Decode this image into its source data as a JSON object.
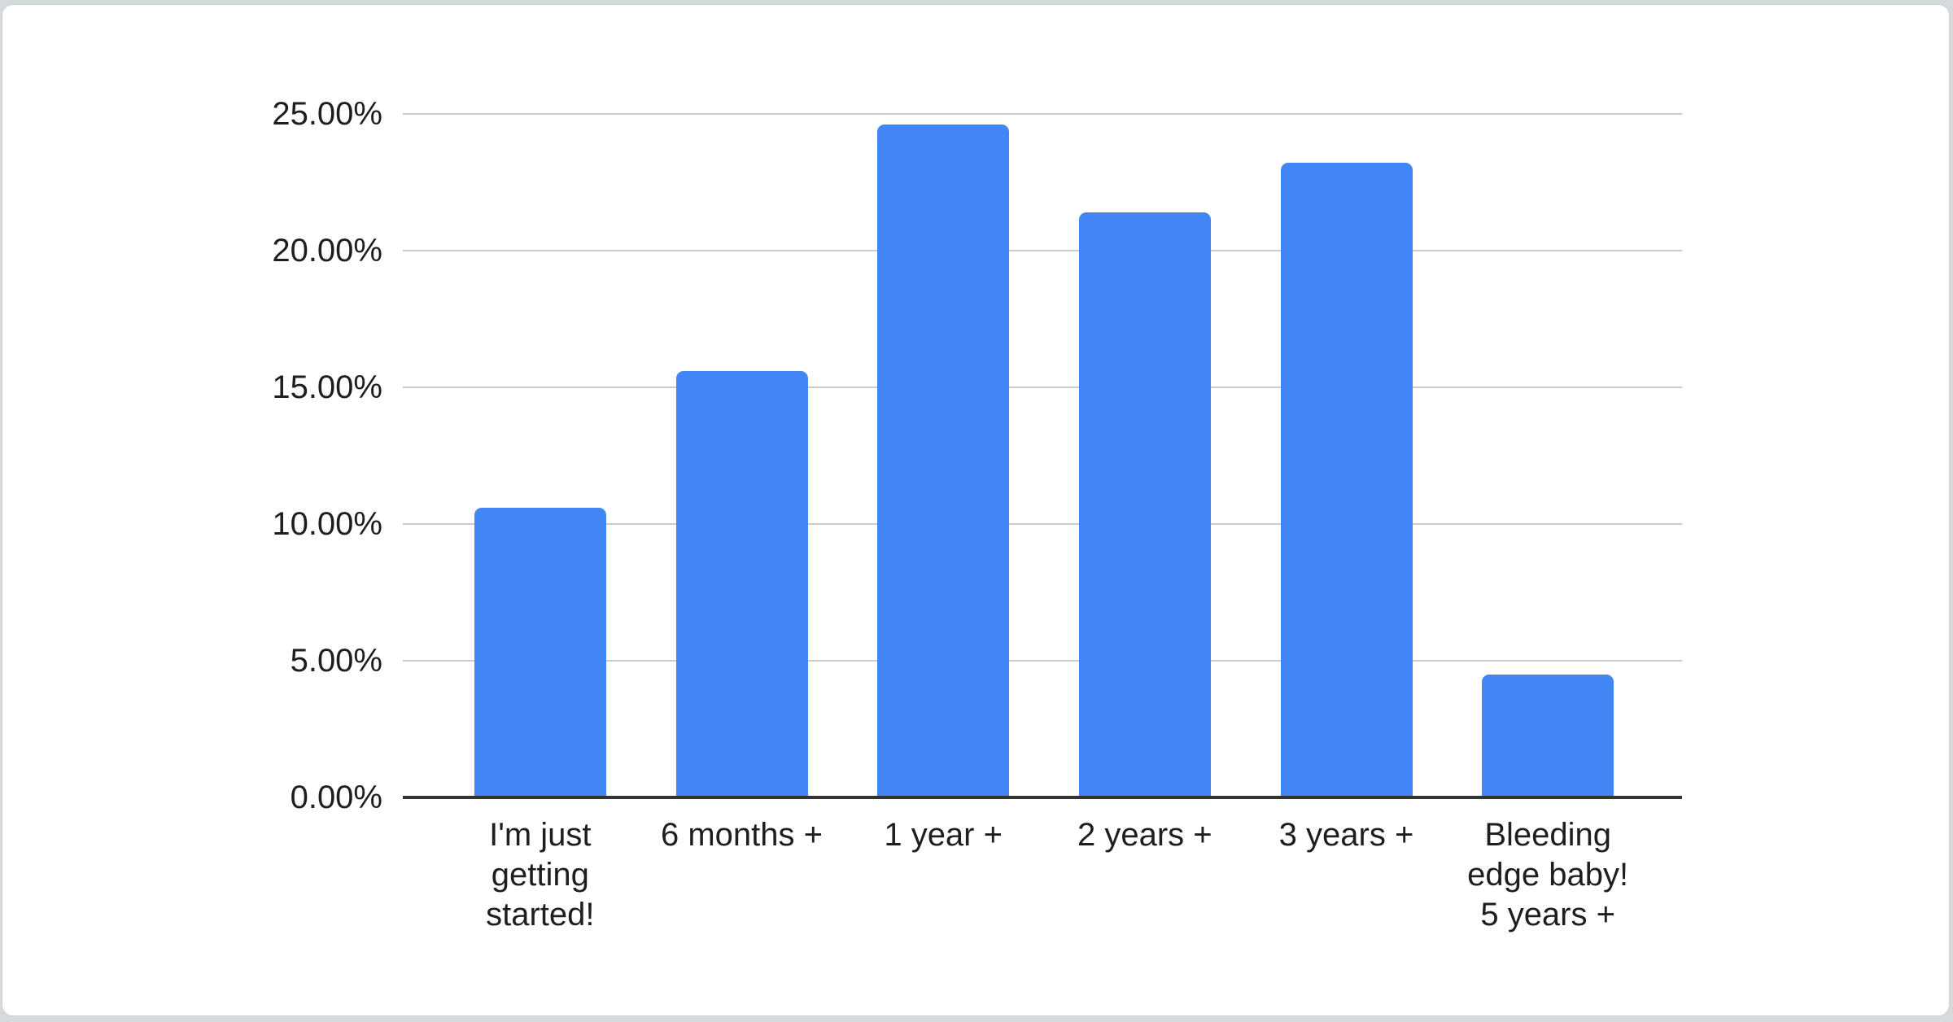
{
  "page": {
    "background_color": "#d7dadd",
    "card_background": "#ffffff",
    "card_border_color": "#ccd0d4"
  },
  "chart_data": {
    "type": "bar",
    "title": "",
    "xlabel": "",
    "ylabel": "",
    "categories": [
      "I'm just\ngetting\nstarted!",
      "6 months +",
      "1 year +",
      "2 years +",
      "3 years +",
      "Bleeding\nedge baby!\n5 years +"
    ],
    "values": [
      10.6,
      15.6,
      24.6,
      21.4,
      23.2,
      4.5
    ],
    "value_unit": "%",
    "ylim": [
      0,
      25
    ],
    "y_ticks": [
      {
        "value": 25,
        "label": "25.00%"
      },
      {
        "value": 20,
        "label": "20.00%"
      },
      {
        "value": 15,
        "label": "15.00%"
      },
      {
        "value": 10,
        "label": "10.00%"
      },
      {
        "value": 5,
        "label": "5.00%"
      },
      {
        "value": 0,
        "label": "0.00%"
      }
    ],
    "grid": true,
    "legend": "none",
    "colors": {
      "bar": "#4285f4",
      "gridline": "#cccccc",
      "axis_line": "#333333",
      "tick_label": "#1e1e1e"
    }
  }
}
